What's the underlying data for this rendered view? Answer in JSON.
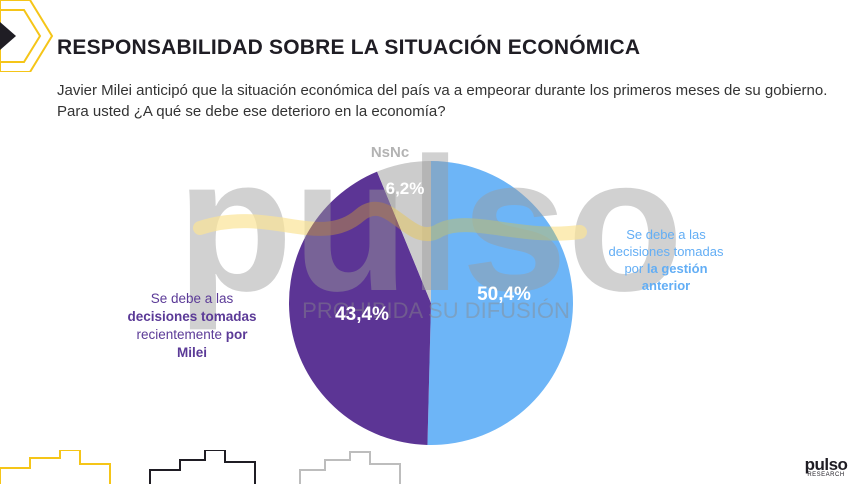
{
  "header": {
    "title": "RESPONSABILIDAD SOBRE LA SITUACIÓN ECONÓMICA",
    "question": "Javier Milei anticipó que la situación económica del país va a empeorar durante los primeros meses de su gobierno. Para usted ¿A qué se debe ese deterioro en la economía?"
  },
  "labels": {
    "milei": {
      "p1": "Se debe a las",
      "p2": "decisiones tomadas",
      "p3": "recientemente ",
      "p4": "por",
      "p5": "Milei"
    },
    "anterior": {
      "p1": "Se debe a las",
      "p2": "decisiones tomadas",
      "p3": "por ",
      "p4": "la gestión",
      "p5": "anterior"
    },
    "nsnc": "NsNc"
  },
  "watermark": {
    "word": "pulso",
    "caption": "PROHIBIDA SU DIFUSIÓN"
  },
  "logo": {
    "word": "pulso",
    "sub": "RESEARCH"
  },
  "colors": {
    "anterior": "#6db5f7",
    "milei": "#5c3595",
    "nsnc": "#cccccc",
    "accent": "#f5c518"
  },
  "chart_data": {
    "type": "pie",
    "slices": [
      {
        "name": "Se debe a las decisiones tomadas por la gestión anterior",
        "value": 50.4,
        "label": "50,4%",
        "color": "#6db5f7"
      },
      {
        "name": "Se debe a las decisiones tomadas recientemente por Milei",
        "value": 43.4,
        "label": "43,4%",
        "color": "#5c3595"
      },
      {
        "name": "NsNc",
        "value": 6.2,
        "label": "6,2%",
        "color": "#cccccc"
      }
    ]
  }
}
